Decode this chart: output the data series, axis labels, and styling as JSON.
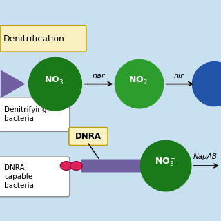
{
  "bg_color": "#c8e0f0",
  "green_dark": "#1a7a1a",
  "green_mid": "#2d9e2d",
  "blue_circle": "#2255aa",
  "purple_arrow": "#7060a0",
  "pink_bacteria": "#e0205a",
  "label_box_color": "#faf0c0",
  "white": "#ffffff",
  "black": "#000000",
  "title_denitrification": "Denitrification",
  "label_denitrifying": "Denitrifying\nbacteria",
  "label_dnra_capable": "DNRA\ncapable\nbacteria",
  "label_dnra": "DNRA",
  "label_napab": "NapAB",
  "label_no3_1": "NO₃⁻",
  "label_no2": "NO₂⁻",
  "label_no3_2": "NO₃⁻",
  "label_nar": "nar",
  "label_nir": "nir"
}
